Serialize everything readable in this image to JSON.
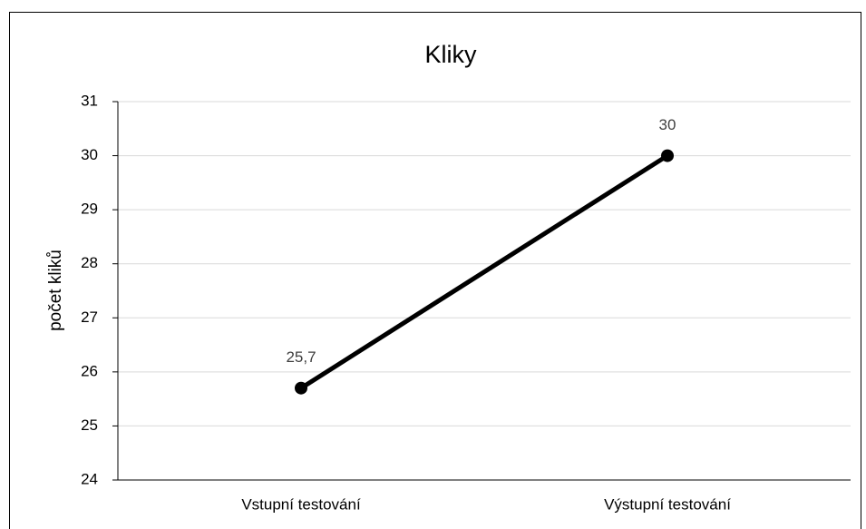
{
  "chart_data": {
    "type": "line",
    "title": "Kliky",
    "y_label": "počet kliků",
    "categories": [
      "Vstupní testování",
      "Výstupní testování"
    ],
    "values": [
      25.7,
      30
    ],
    "value_labels": [
      "25,7",
      "30"
    ],
    "color": "#000000",
    "ylim": [
      24,
      31
    ],
    "yticks": [
      24,
      25,
      26,
      27,
      28,
      29,
      30,
      31
    ],
    "grid": true
  }
}
